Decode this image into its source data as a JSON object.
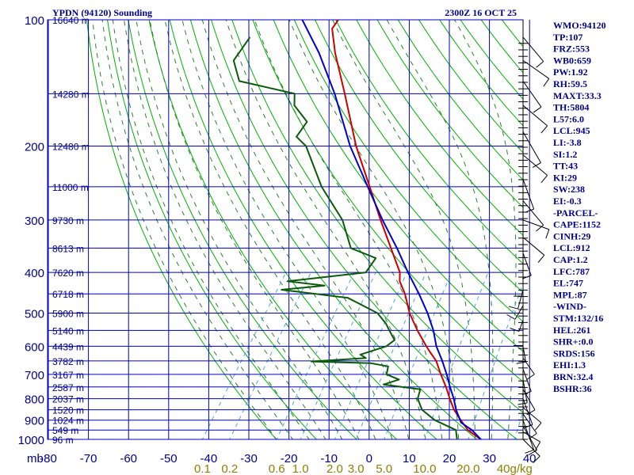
{
  "header": {
    "station_title": "YPDN (94120) Sounding",
    "valid_time": "2300Z 16 OCT 25"
  },
  "colors": {
    "background": "#ffffff",
    "grid": "#0000c0",
    "dry_adiabat": "#00b000",
    "moist_adiabat": "#2e7d32",
    "mixing_ratio": "#4fa3e0",
    "temperature": "#cc0000",
    "dewpoint": "#0a5a0a",
    "parcel": "#0000cc",
    "text": "#00008b"
  },
  "chart_data": {
    "type": "line",
    "title": "YPDN (94120) Sounding",
    "x_axis": {
      "label": "",
      "range": [
        -80,
        40
      ],
      "ticks": [
        "-80",
        "-70",
        "-60",
        "-50",
        "-40",
        "-30",
        "-20",
        "-10",
        "0",
        "10",
        "20",
        "30",
        "40"
      ],
      "unit_prefix": "mb"
    },
    "y_axis": {
      "scale": "log",
      "range": [
        1000,
        100
      ],
      "ticks": [
        "100",
        "200",
        "300",
        "400",
        "500",
        "600",
        "700",
        "800",
        "900",
        "1000"
      ]
    },
    "height_labels": [
      {
        "p": 100,
        "label": "16640 m"
      },
      {
        "p": 150,
        "label": "14280 m"
      },
      {
        "p": 200,
        "label": "12480 m"
      },
      {
        "p": 250,
        "label": "11000 m"
      },
      {
        "p": 300,
        "label": "9730 m"
      },
      {
        "p": 350,
        "label": "8613 m"
      },
      {
        "p": 400,
        "label": "7620 m"
      },
      {
        "p": 450,
        "label": "6718 m"
      },
      {
        "p": 500,
        "label": "5900 m"
      },
      {
        "p": 550,
        "label": "5140 m"
      },
      {
        "p": 600,
        "label": "4439 m"
      },
      {
        "p": 650,
        "label": "3782 m"
      },
      {
        "p": 700,
        "label": "3167 m"
      },
      {
        "p": 750,
        "label": "2587 m"
      },
      {
        "p": 800,
        "label": "2037 m"
      },
      {
        "p": 850,
        "label": "1520 m"
      },
      {
        "p": 900,
        "label": "1024 m"
      },
      {
        "p": 950,
        "label": "549 m"
      },
      {
        "p": 1000,
        "label": "96 m"
      }
    ],
    "mixing_ratio_labels": [
      {
        "w": 0.1,
        "label": "0.1"
      },
      {
        "w": 0.2,
        "label": "0.2"
      },
      {
        "w": 0.6,
        "label": "0.6"
      },
      {
        "w": 1.0,
        "label": "1.0"
      },
      {
        "w": 2.0,
        "label": "2.0"
      },
      {
        "w": 3.0,
        "label": "3.0"
      },
      {
        "w": 5.0,
        "label": "5.0"
      },
      {
        "w": 10.0,
        "label": "10.0"
      },
      {
        "w": 20.0,
        "label": "20.0"
      },
      {
        "w": 40.0,
        "label": "40g/kg"
      }
    ],
    "series": [
      {
        "key": "temperature",
        "points": [
          [
            1002,
            28
          ],
          [
            950,
            23
          ],
          [
            900,
            19.5
          ],
          [
            850,
            16
          ],
          [
            800,
            13
          ],
          [
            750,
            10
          ],
          [
            700,
            6.5
          ],
          [
            650,
            3
          ],
          [
            620,
            0
          ],
          [
            600,
            -2
          ],
          [
            550,
            -7
          ],
          [
            500,
            -12
          ],
          [
            450,
            -16.5
          ],
          [
            420,
            -20
          ],
          [
            400,
            -21.5
          ],
          [
            350,
            -28
          ],
          [
            300,
            -35.5
          ],
          [
            250,
            -44
          ],
          [
            200,
            -54.5
          ],
          [
            150,
            -66.5
          ],
          [
            120,
            -76
          ],
          [
            105,
            -81
          ],
          [
            100,
            -81
          ]
        ]
      },
      {
        "key": "dewpoint",
        "points": [
          [
            1002,
            22
          ],
          [
            950,
            20
          ],
          [
            900,
            13
          ],
          [
            850,
            8
          ],
          [
            800,
            5
          ],
          [
            760,
            4
          ],
          [
            740,
            -6
          ],
          [
            720,
            -3
          ],
          [
            700,
            -7
          ],
          [
            670,
            -8
          ],
          [
            658,
            -13
          ],
          [
            652,
            -28
          ],
          [
            640,
            -15
          ],
          [
            628,
            -17
          ],
          [
            600,
            -12
          ],
          [
            580,
            -11
          ],
          [
            550,
            -14
          ],
          [
            530,
            -16
          ],
          [
            500,
            -20
          ],
          [
            460,
            -30
          ],
          [
            440,
            -48
          ],
          [
            430,
            -38
          ],
          [
            420,
            -48
          ],
          [
            400,
            -30
          ],
          [
            370,
            -30
          ],
          [
            350,
            -38
          ],
          [
            300,
            -45
          ],
          [
            250,
            -56
          ],
          [
            200,
            -67
          ],
          [
            190,
            -71
          ],
          [
            175,
            -71
          ],
          [
            160,
            -77
          ],
          [
            150,
            -79
          ],
          [
            140,
            -95
          ],
          [
            125,
            -100
          ],
          [
            110,
            -100
          ]
        ]
      },
      {
        "key": "parcel",
        "points": [
          [
            1002,
            28
          ],
          [
            950,
            24
          ],
          [
            912,
            20
          ],
          [
            850,
            16.5
          ],
          [
            800,
            14
          ],
          [
            750,
            11
          ],
          [
            700,
            8
          ],
          [
            650,
            4.5
          ],
          [
            600,
            0.5
          ],
          [
            550,
            -3
          ],
          [
            500,
            -7.5
          ],
          [
            450,
            -13
          ],
          [
            400,
            -19.5
          ],
          [
            350,
            -26.5
          ],
          [
            300,
            -35
          ],
          [
            250,
            -44.5
          ],
          [
            200,
            -56
          ],
          [
            150,
            -69
          ],
          [
            120,
            -80
          ],
          [
            100,
            -90
          ]
        ]
      }
    ],
    "wind_barbs": true
  },
  "indices": [
    "WMO:94120",
    "TP:107",
    "FRZ:553",
    "WB0:659",
    "PW:1.92",
    "RH:59.5",
    "MAXT:33.3",
    "TH:5804",
    "L57:6.0",
    "LCL:945",
    "LI:-3.8",
    "SI:1.2",
    "TT:43",
    "KI:29",
    "SW:238",
    "EI:-0.3",
    "-PARCEL-",
    "CAPE:1152",
    "CINH:29",
    "LCL:912",
    "CAP:1.2",
    "LFC:787",
    "EL:747",
    "MPL:87",
    "-WIND-",
    "STM:132/16",
    "HEL:261",
    "SHR+:0.0",
    "SRDS:156",
    "EHI:1.3",
    "BRN:32.4",
    "BSHR:36"
  ]
}
